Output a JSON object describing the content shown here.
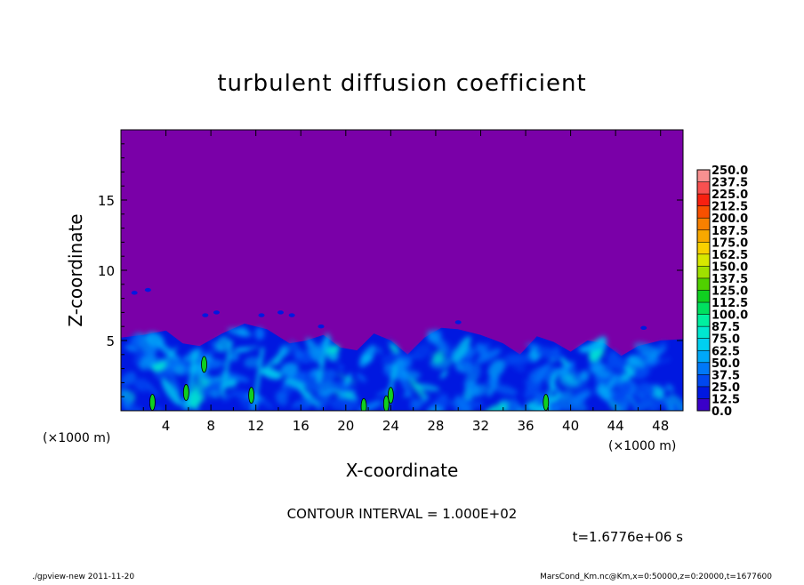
{
  "chart_data": {
    "type": "heatmap",
    "title": "turbulent diffusion coefficient",
    "xlabel": "X-coordinate",
    "ylabel": "Z-coordinate",
    "x_unit": "(×1000 m)",
    "y_unit": "(×1000 m)",
    "xlim": [
      0,
      50
    ],
    "ylim": [
      0,
      20
    ],
    "x_ticks": [
      4,
      8,
      12,
      16,
      20,
      24,
      28,
      32,
      36,
      40,
      44,
      48
    ],
    "y_ticks": [
      5,
      10,
      15
    ],
    "contour_interval": "CONTOUR INTERVAL = 1.000E+02",
    "time_label": "t=1.6776e+06 s",
    "colorbar": {
      "levels": [
        "0.0",
        "12.5",
        "25.0",
        "37.5",
        "50.0",
        "62.5",
        "75.0",
        "87.5",
        "100.0",
        "112.5",
        "125.0",
        "137.5",
        "150.0",
        "162.5",
        "175.0",
        "187.5",
        "200.0",
        "212.5",
        "225.0",
        "237.5",
        "250.0"
      ],
      "colors": [
        "#7a00a8",
        "#3a00c8",
        "#0018e0",
        "#0048f0",
        "#0078f8",
        "#00a8f8",
        "#00d0f0",
        "#00e8d0",
        "#00f0a0",
        "#00e060",
        "#10d020",
        "#50d000",
        "#a0e000",
        "#d8e800",
        "#f8d000",
        "#f8a800",
        "#f88000",
        "#f85000",
        "#f82010",
        "#f85050",
        "#f89090"
      ]
    },
    "field_description": "background value 0.0 (purple) above ~6 km; turbulent boundary layer 0-6 km with values mostly 25-87.5, isolated patches above 100",
    "boundary_layer_top_km": [
      [
        0,
        5.2
      ],
      [
        2,
        5.4
      ],
      [
        4,
        5.7
      ],
      [
        5.5,
        4.8
      ],
      [
        7,
        4.6
      ],
      [
        9,
        5.5
      ],
      [
        11,
        6.2
      ],
      [
        13,
        5.8
      ],
      [
        15,
        4.8
      ],
      [
        16.5,
        5.0
      ],
      [
        18,
        5.4
      ],
      [
        19.5,
        4.5
      ],
      [
        21,
        4.3
      ],
      [
        22.5,
        5.5
      ],
      [
        24,
        5.0
      ],
      [
        25.5,
        4.0
      ],
      [
        27,
        5.2
      ],
      [
        28.5,
        5.9
      ],
      [
        30,
        5.8
      ],
      [
        32,
        5.4
      ],
      [
        34,
        4.8
      ],
      [
        35.5,
        4.0
      ],
      [
        37,
        5.3
      ],
      [
        38.5,
        4.9
      ],
      [
        40,
        4.2
      ],
      [
        41.5,
        5.0
      ],
      [
        43,
        4.8
      ],
      [
        44.5,
        3.9
      ],
      [
        46,
        4.6
      ],
      [
        48,
        5.0
      ],
      [
        50,
        5.1
      ]
    ]
  },
  "footer": {
    "left": "./gpview-new   2011-11-20",
    "right": "MarsCond_Km.nc@Km,x=0:50000,z=0:20000,t=1677600"
  }
}
